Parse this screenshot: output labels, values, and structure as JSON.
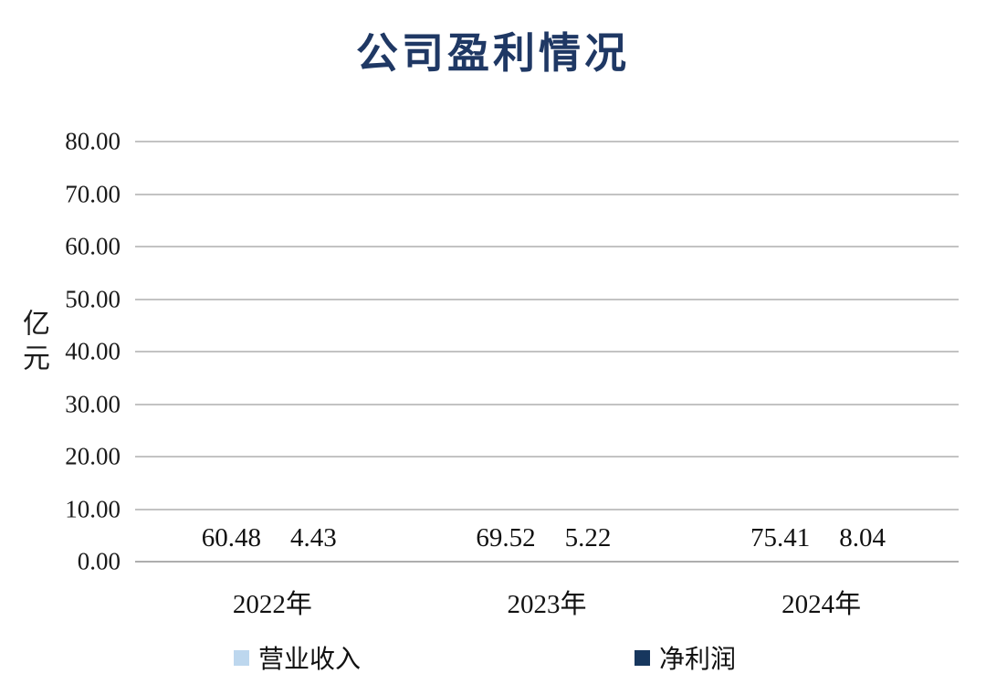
{
  "title": "公司盈利情况",
  "chart_data": {
    "type": "bar",
    "title": "公司盈利情况",
    "xlabel": "",
    "ylabel": "亿元",
    "categories": [
      "2022年",
      "2023年",
      "2024年"
    ],
    "series": [
      {
        "name": "营业收入",
        "slug": "revenue",
        "color": "#BDD7EE",
        "values": [
          60.48,
          69.52,
          75.41
        ]
      },
      {
        "name": "净利润",
        "slug": "net-profit",
        "color": "#17375E",
        "values": [
          4.43,
          5.22,
          8.04
        ]
      }
    ],
    "data_labels": [
      [
        "60.48",
        "69.52",
        "75.41"
      ],
      [
        "4.43",
        "5.22",
        "8.04"
      ]
    ],
    "ylim": [
      0,
      80
    ],
    "ytick_step": 10,
    "ytick_labels": [
      "0.00",
      "10.00",
      "20.00",
      "30.00",
      "40.00",
      "50.00",
      "60.00",
      "70.00",
      "80.00"
    ],
    "grid": true,
    "legend_position": "bottom"
  },
  "colors": {
    "title_text": "#1F3864",
    "gridline": "#C3C3C3",
    "axis_text": "#1A1A1A"
  }
}
